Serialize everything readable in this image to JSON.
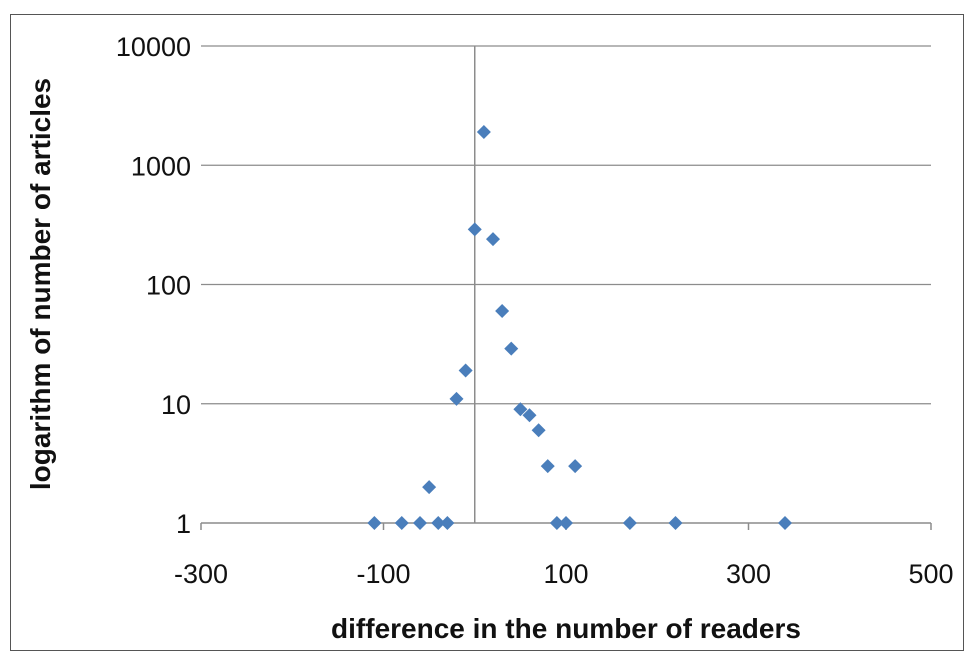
{
  "chart_data": {
    "type": "scatter",
    "xlabel": "difference in the number of readers",
    "ylabel": "logarithm of number of articles",
    "xlim": [
      -300,
      500
    ],
    "ylim": [
      1,
      10000
    ],
    "y_scale": "log",
    "x_ticks": [
      "-300",
      "-100",
      "100",
      "300",
      "500"
    ],
    "x_tick_values": [
      -300,
      -100,
      100,
      300,
      500
    ],
    "y_ticks": [
      "1",
      "10",
      "100",
      "1000",
      "10000"
    ],
    "y_tick_values": [
      1,
      10,
      100,
      1000,
      10000
    ],
    "grid": "horizontal",
    "marker": "diamond",
    "marker_color": "#4a7ebb",
    "series": [
      {
        "points": [
          {
            "x": -110,
            "y": 1
          },
          {
            "x": -80,
            "y": 1
          },
          {
            "x": -60,
            "y": 1
          },
          {
            "x": -50,
            "y": 2
          },
          {
            "x": -40,
            "y": 1
          },
          {
            "x": -30,
            "y": 1
          },
          {
            "x": -20,
            "y": 11
          },
          {
            "x": -10,
            "y": 19
          },
          {
            "x": 0,
            "y": 290
          },
          {
            "x": 10,
            "y": 1900
          },
          {
            "x": 20,
            "y": 240
          },
          {
            "x": 30,
            "y": 60
          },
          {
            "x": 40,
            "y": 29
          },
          {
            "x": 50,
            "y": 9
          },
          {
            "x": 60,
            "y": 8
          },
          {
            "x": 70,
            "y": 6
          },
          {
            "x": 80,
            "y": 3
          },
          {
            "x": 90,
            "y": 1
          },
          {
            "x": 100,
            "y": 1
          },
          {
            "x": 110,
            "y": 3
          },
          {
            "x": 170,
            "y": 1
          },
          {
            "x": 220,
            "y": 1
          },
          {
            "x": 340,
            "y": 1
          }
        ]
      }
    ]
  }
}
